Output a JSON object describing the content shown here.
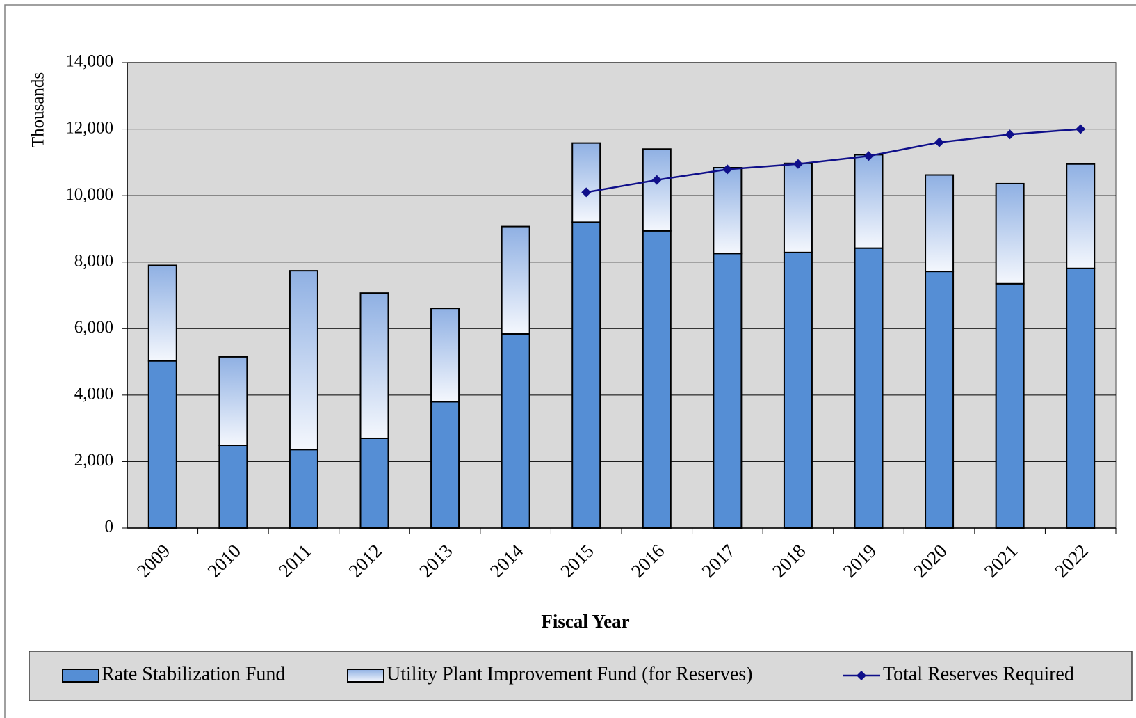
{
  "chart_data": {
    "type": "bar",
    "stacked": true,
    "y_label": "Thousands",
    "x_label": "Fiscal Year",
    "categories": [
      "2009",
      "2010",
      "2011",
      "2012",
      "2013",
      "2014",
      "2015",
      "2016",
      "2017",
      "2018",
      "2019",
      "2020",
      "2021",
      "2022"
    ],
    "series": [
      {
        "name": "Rate Stabilization Fund",
        "type": "bar",
        "color": "#558ed5",
        "values": [
          5030,
          2490,
          2360,
          2700,
          3800,
          5840,
          9200,
          8940,
          8260,
          8290,
          8420,
          7720,
          7350,
          7810
        ]
      },
      {
        "name": "Utility Plant Improvement Fund (for Reserves)",
        "type": "bar",
        "color": "#8fb0e3",
        "values": [
          2870,
          2660,
          5380,
          4370,
          2810,
          3230,
          2380,
          2460,
          2580,
          2680,
          2810,
          2900,
          3010,
          3140
        ]
      },
      {
        "name": "Total Reserves Required",
        "type": "line",
        "color": "#0f0f8a",
        "values": [
          null,
          null,
          null,
          null,
          null,
          null,
          10100,
          10470,
          10790,
          10950,
          11190,
          11600,
          11840,
          12000
        ]
      }
    ],
    "ylim": [
      0,
      14000
    ],
    "yticks": [
      0,
      {
        "value": 2000,
        "label": "2,000"
      },
      {
        "value": 4000,
        "label": "4,000"
      },
      {
        "value": 6000,
        "label": "6,000"
      },
      {
        "value": 8000,
        "label": "8,000"
      },
      {
        "value": 10000,
        "label": "10,000"
      },
      {
        "value": 12000,
        "label": "12,000"
      },
      {
        "value": 14000,
        "label": "14,000"
      }
    ],
    "grid": true,
    "legend": "bottom"
  }
}
